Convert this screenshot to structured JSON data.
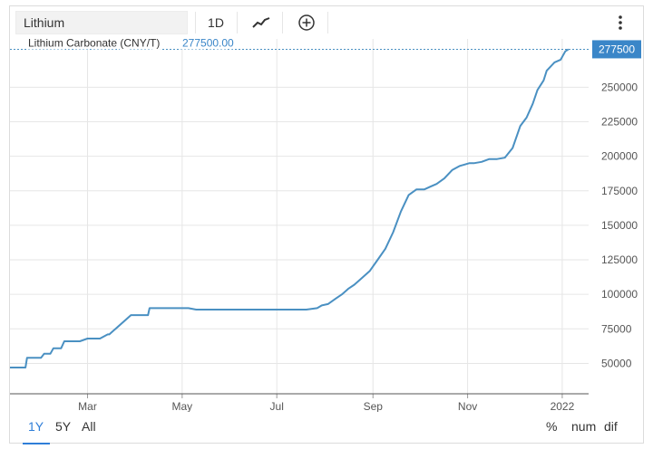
{
  "toolbar": {
    "search_value": "Lithium",
    "interval_label": "1D",
    "chart_type_icon": "line-chart-icon",
    "add_icon": "plus-circle-icon",
    "menu_icon": "vertical-dots-icon"
  },
  "footer": {
    "ranges": [
      "1Y",
      "5Y",
      "All"
    ],
    "active_range": "1Y",
    "modes": [
      "%",
      "num",
      "dif"
    ]
  },
  "colors": {
    "line": "#4a90c2",
    "label_bg": "#3a86c8",
    "grid": "#e6e6e6",
    "axis_text": "#555555"
  },
  "chart_data": {
    "type": "line",
    "series": [
      {
        "name": "Lithium Carbonate (CNY/T)",
        "last_value_label": "277500.00",
        "x": [
          "2021-01-10",
          "2021-01-20",
          "2021-01-21",
          "2021-01-30",
          "2021-02-01",
          "2021-02-05",
          "2021-02-07",
          "2021-02-12",
          "2021-02-14",
          "2021-02-24",
          "2021-03-01",
          "2021-03-09",
          "2021-03-14",
          "2021-03-15",
          "2021-03-29",
          "2021-04-09",
          "2021-04-10",
          "2021-04-20",
          "2021-05-05",
          "2021-05-10",
          "2021-05-20",
          "2021-06-10",
          "2021-07-01",
          "2021-07-20",
          "2021-07-27",
          "2021-07-30",
          "2021-08-03",
          "2021-08-08",
          "2021-08-12",
          "2021-08-16",
          "2021-08-20",
          "2021-08-25",
          "2021-08-30",
          "2021-09-04",
          "2021-09-09",
          "2021-09-14",
          "2021-09-19",
          "2021-09-24",
          "2021-09-29",
          "2021-10-01",
          "2021-10-04",
          "2021-10-08",
          "2021-10-12",
          "2021-10-17",
          "2021-10-22",
          "2021-10-27",
          "2021-10-30",
          "2021-11-02",
          "2021-11-05",
          "2021-11-10",
          "2021-11-15",
          "2021-11-20",
          "2021-11-25",
          "2021-11-30",
          "2021-12-05",
          "2021-12-09",
          "2021-12-13",
          "2021-12-16",
          "2021-12-20",
          "2021-12-22",
          "2021-12-27",
          "2021-12-31",
          "2022-01-03",
          "2022-01-05"
        ],
        "y": [
          47000,
          47000,
          54000,
          54000,
          57000,
          57000,
          61000,
          61000,
          66000,
          66000,
          68000,
          68000,
          71000,
          71000,
          85000,
          85000,
          90000,
          90000,
          90000,
          89000,
          89000,
          89000,
          89000,
          89000,
          90000,
          92000,
          93000,
          97000,
          100000,
          104000,
          107000,
          112000,
          117000,
          125000,
          133000,
          145000,
          160000,
          172000,
          176000,
          176000,
          176000,
          178000,
          180000,
          184000,
          190000,
          193000,
          194000,
          195000,
          195000,
          196000,
          198000,
          198000,
          199000,
          206000,
          222000,
          228000,
          238000,
          248000,
          255000,
          262000,
          268000,
          270000,
          276000,
          277500
        ]
      }
    ],
    "x_ticks": [
      {
        "date": "2021-03-01",
        "label": "Mar"
      },
      {
        "date": "2021-05-01",
        "label": "May"
      },
      {
        "date": "2021-07-01",
        "label": "Jul"
      },
      {
        "date": "2021-09-01",
        "label": "Sep"
      },
      {
        "date": "2021-11-01",
        "label": "Nov"
      },
      {
        "date": "2022-01-01",
        "label": "2022"
      }
    ],
    "y_ticks": [
      50000,
      75000,
      100000,
      125000,
      150000,
      175000,
      200000,
      225000,
      250000
    ],
    "last_value_tag": "277500",
    "x_range": [
      "2021-01-10",
      "2022-01-18"
    ],
    "ylim": [
      28000,
      285000
    ],
    "grid": "horizontal"
  }
}
